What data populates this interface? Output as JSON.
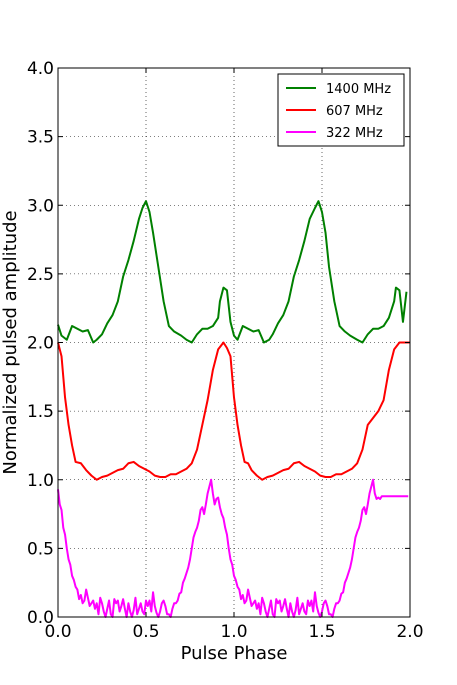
{
  "chart_data": {
    "type": "line",
    "title": "",
    "xlabel": "Pulse Phase",
    "ylabel": "Normalized pulsed amplitude",
    "xlim": [
      0.0,
      2.0
    ],
    "ylim": [
      0.0,
      4.0
    ],
    "xticks": [
      "0.0",
      "0.5",
      "1.0",
      "1.5",
      "2.0"
    ],
    "yticks": [
      "0.0",
      "0.5",
      "1.0",
      "1.5",
      "2.0",
      "2.5",
      "3.0",
      "3.5",
      "4.0"
    ],
    "grid": true,
    "legend_position": "top-right",
    "series": [
      {
        "name": "1400 MHz",
        "color": "#008000",
        "x": [
          0.0,
          0.02,
          0.05,
          0.08,
          0.11,
          0.14,
          0.17,
          0.2,
          0.22,
          0.25,
          0.28,
          0.31,
          0.34,
          0.37,
          0.4,
          0.43,
          0.46,
          0.48,
          0.5,
          0.52,
          0.54,
          0.57,
          0.6,
          0.63,
          0.66,
          0.7,
          0.73,
          0.76,
          0.79,
          0.82,
          0.85,
          0.88,
          0.91,
          0.92,
          0.94,
          0.96,
          0.98,
          1.0,
          1.02,
          1.05,
          1.08,
          1.11,
          1.14,
          1.17,
          1.2,
          1.22,
          1.25,
          1.28,
          1.31,
          1.34,
          1.37,
          1.4,
          1.43,
          1.46,
          1.48,
          1.5,
          1.52,
          1.54,
          1.57,
          1.6,
          1.63,
          1.66,
          1.7,
          1.73,
          1.76,
          1.79,
          1.82,
          1.85,
          1.88,
          1.91,
          1.92,
          1.94,
          1.96,
          1.98
        ],
        "y": [
          2.13,
          2.05,
          2.02,
          2.12,
          2.1,
          2.08,
          2.09,
          2.0,
          2.02,
          2.06,
          2.14,
          2.2,
          2.3,
          2.48,
          2.6,
          2.74,
          2.9,
          2.98,
          3.03,
          2.95,
          2.8,
          2.55,
          2.3,
          2.12,
          2.08,
          2.05,
          2.02,
          2.0,
          2.06,
          2.1,
          2.1,
          2.12,
          2.18,
          2.3,
          2.4,
          2.38,
          2.15,
          2.05,
          2.02,
          2.12,
          2.1,
          2.08,
          2.09,
          2.0,
          2.02,
          2.06,
          2.14,
          2.2,
          2.3,
          2.48,
          2.6,
          2.74,
          2.9,
          2.98,
          3.03,
          2.95,
          2.8,
          2.55,
          2.3,
          2.12,
          2.08,
          2.05,
          2.02,
          2.0,
          2.06,
          2.1,
          2.1,
          2.12,
          2.18,
          2.3,
          2.4,
          2.38,
          2.15,
          2.37
        ]
      },
      {
        "name": "607 MHz",
        "color": "#ff0000",
        "x": [
          0.0,
          0.02,
          0.04,
          0.06,
          0.08,
          0.1,
          0.13,
          0.16,
          0.19,
          0.22,
          0.25,
          0.28,
          0.31,
          0.34,
          0.37,
          0.4,
          0.43,
          0.46,
          0.49,
          0.52,
          0.55,
          0.58,
          0.61,
          0.64,
          0.67,
          0.7,
          0.73,
          0.76,
          0.79,
          0.82,
          0.85,
          0.88,
          0.91,
          0.94,
          0.96,
          0.98,
          1.0,
          1.02,
          1.04,
          1.06,
          1.08,
          1.1,
          1.13,
          1.16,
          1.19,
          1.22,
          1.25,
          1.28,
          1.31,
          1.34,
          1.37,
          1.4,
          1.43,
          1.46,
          1.49,
          1.52,
          1.55,
          1.58,
          1.61,
          1.64,
          1.67,
          1.7,
          1.73,
          1.76,
          1.79,
          1.82,
          1.85,
          1.88,
          1.91,
          1.94,
          1.96,
          1.98,
          2.0
        ],
        "y": [
          2.0,
          1.9,
          1.6,
          1.4,
          1.25,
          1.13,
          1.12,
          1.07,
          1.03,
          1.0,
          1.02,
          1.03,
          1.05,
          1.07,
          1.08,
          1.12,
          1.13,
          1.1,
          1.08,
          1.06,
          1.03,
          1.02,
          1.02,
          1.04,
          1.04,
          1.06,
          1.08,
          1.12,
          1.22,
          1.4,
          1.58,
          1.8,
          1.95,
          2.0,
          1.96,
          1.9,
          1.6,
          1.4,
          1.25,
          1.13,
          1.12,
          1.07,
          1.03,
          1.0,
          1.02,
          1.03,
          1.05,
          1.07,
          1.08,
          1.12,
          1.13,
          1.1,
          1.08,
          1.06,
          1.03,
          1.02,
          1.02,
          1.04,
          1.04,
          1.06,
          1.08,
          1.12,
          1.22,
          1.4,
          1.45,
          1.5,
          1.58,
          1.8,
          1.95,
          2.0,
          2.0,
          2.0,
          2.0
        ]
      },
      {
        "name": "322 MHz",
        "color": "#ff00ff",
        "x": [
          0.0,
          0.01,
          0.02,
          0.03,
          0.04,
          0.05,
          0.06,
          0.07,
          0.08,
          0.09,
          0.1,
          0.11,
          0.12,
          0.13,
          0.14,
          0.15,
          0.16,
          0.17,
          0.18,
          0.19,
          0.2,
          0.21,
          0.22,
          0.23,
          0.24,
          0.25,
          0.26,
          0.27,
          0.28,
          0.29,
          0.3,
          0.31,
          0.32,
          0.33,
          0.34,
          0.35,
          0.36,
          0.37,
          0.38,
          0.39,
          0.4,
          0.41,
          0.42,
          0.43,
          0.44,
          0.45,
          0.46,
          0.47,
          0.48,
          0.49,
          0.5,
          0.51,
          0.52,
          0.53,
          0.54,
          0.55,
          0.56,
          0.57,
          0.58,
          0.59,
          0.6,
          0.61,
          0.62,
          0.63,
          0.64,
          0.65,
          0.66,
          0.67,
          0.68,
          0.69,
          0.7,
          0.71,
          0.72,
          0.73,
          0.74,
          0.75,
          0.76,
          0.77,
          0.78,
          0.79,
          0.8,
          0.81,
          0.82,
          0.83,
          0.84,
          0.85,
          0.86,
          0.87,
          0.88,
          0.89,
          0.9,
          0.91,
          0.92,
          0.93,
          0.94,
          0.95,
          0.96,
          0.97,
          0.98,
          0.99,
          1.0,
          1.01,
          1.02,
          1.03,
          1.04,
          1.05,
          1.06,
          1.07,
          1.08,
          1.09,
          1.1,
          1.11,
          1.12,
          1.13,
          1.14,
          1.15,
          1.16,
          1.17,
          1.18,
          1.19,
          1.2,
          1.21,
          1.22,
          1.23,
          1.24,
          1.25,
          1.26,
          1.27,
          1.28,
          1.29,
          1.3,
          1.31,
          1.32,
          1.33,
          1.34,
          1.35,
          1.36,
          1.37,
          1.38,
          1.39,
          1.4,
          1.41,
          1.42,
          1.43,
          1.44,
          1.45,
          1.46,
          1.47,
          1.48,
          1.49,
          1.5,
          1.51,
          1.52,
          1.53,
          1.54,
          1.55,
          1.56,
          1.57,
          1.58,
          1.59,
          1.6,
          1.61,
          1.62,
          1.63,
          1.64,
          1.65,
          1.66,
          1.67,
          1.68,
          1.69,
          1.7,
          1.71,
          1.72,
          1.73,
          1.74,
          1.75,
          1.76,
          1.77,
          1.78,
          1.79,
          1.8,
          1.81,
          1.82,
          1.83,
          1.84,
          1.85,
          1.86,
          1.87,
          1.88,
          1.89,
          1.9,
          1.91,
          1.92,
          1.93,
          1.94,
          1.95,
          1.96,
          1.97,
          1.98,
          1.99
        ],
        "y": [
          0.93,
          0.82,
          0.78,
          0.65,
          0.6,
          0.5,
          0.42,
          0.38,
          0.3,
          0.27,
          0.22,
          0.2,
          0.13,
          0.16,
          0.1,
          0.12,
          0.2,
          0.14,
          0.08,
          0.1,
          0.12,
          0.06,
          0.1,
          0.02,
          0.14,
          0.1,
          0.04,
          0.0,
          0.06,
          0.12,
          0.02,
          0.0,
          0.13,
          0.1,
          0.12,
          0.04,
          0.08,
          0.13,
          0.06,
          0.0,
          0.1,
          0.04,
          0.0,
          0.05,
          0.14,
          0.02,
          0.06,
          0.1,
          0.04,
          0.02,
          0.12,
          0.08,
          0.12,
          0.04,
          0.18,
          0.08,
          0.03,
          0.0,
          0.04,
          0.1,
          0.12,
          0.08,
          0.02,
          0.02,
          0.0,
          0.06,
          0.1,
          0.1,
          0.12,
          0.17,
          0.18,
          0.25,
          0.28,
          0.32,
          0.36,
          0.42,
          0.5,
          0.58,
          0.62,
          0.65,
          0.7,
          0.78,
          0.8,
          0.75,
          0.82,
          0.9,
          0.95,
          1.0,
          0.9,
          0.82,
          0.86,
          0.87,
          0.8,
          0.75,
          0.72,
          0.65,
          0.6,
          0.5,
          0.42,
          0.38,
          0.3,
          0.27,
          0.22,
          0.2,
          0.13,
          0.16,
          0.1,
          0.12,
          0.2,
          0.14,
          0.08,
          0.1,
          0.12,
          0.06,
          0.1,
          0.02,
          0.14,
          0.1,
          0.04,
          0.0,
          0.06,
          0.12,
          0.02,
          0.0,
          0.13,
          0.1,
          0.12,
          0.04,
          0.08,
          0.13,
          0.06,
          0.0,
          0.1,
          0.04,
          0.0,
          0.05,
          0.14,
          0.02,
          0.06,
          0.1,
          0.04,
          0.02,
          0.12,
          0.08,
          0.12,
          0.04,
          0.18,
          0.08,
          0.03,
          0.0,
          0.04,
          0.1,
          0.12,
          0.08,
          0.02,
          0.02,
          0.0,
          0.06,
          0.1,
          0.1,
          0.12,
          0.17,
          0.18,
          0.25,
          0.28,
          0.32,
          0.36,
          0.42,
          0.5,
          0.58,
          0.62,
          0.65,
          0.7,
          0.78,
          0.8,
          0.75,
          0.82,
          0.9,
          0.95,
          1.0,
          0.9,
          0.86,
          0.87,
          0.86,
          0.88,
          0.88,
          0.88,
          0.88,
          0.88,
          0.88,
          0.88,
          0.88,
          0.88,
          0.88,
          0.88,
          0.88,
          0.88,
          0.88,
          0.88,
          0.88
        ]
      }
    ]
  }
}
